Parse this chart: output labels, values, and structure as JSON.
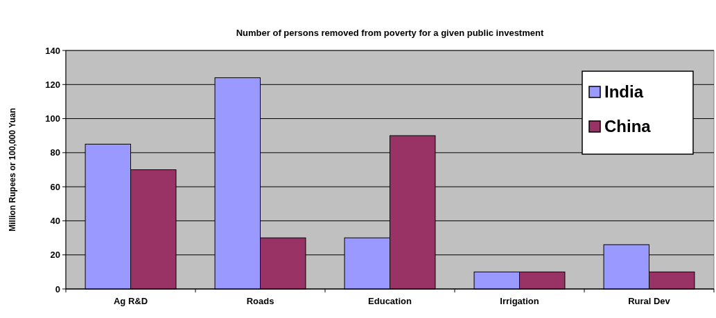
{
  "chart_data": {
    "type": "bar",
    "title": "Number of persons removed from poverty for a given public investment",
    "ylabel": "Million Rupees or 100,000 Yuan",
    "categories": [
      "Ag R&D",
      "Roads",
      "Education",
      "Irrigation",
      "Rural Dev"
    ],
    "series": [
      {
        "name": "India",
        "color": "#9999ff",
        "values": [
          85,
          124,
          30,
          10,
          26
        ]
      },
      {
        "name": "China",
        "color": "#993366",
        "values": [
          70,
          30,
          90,
          10,
          10
        ]
      }
    ],
    "ylim": [
      0,
      140
    ],
    "yticks": [
      0,
      20,
      40,
      60,
      80,
      100,
      120,
      140
    ],
    "grid": "y",
    "legend": "top right"
  }
}
